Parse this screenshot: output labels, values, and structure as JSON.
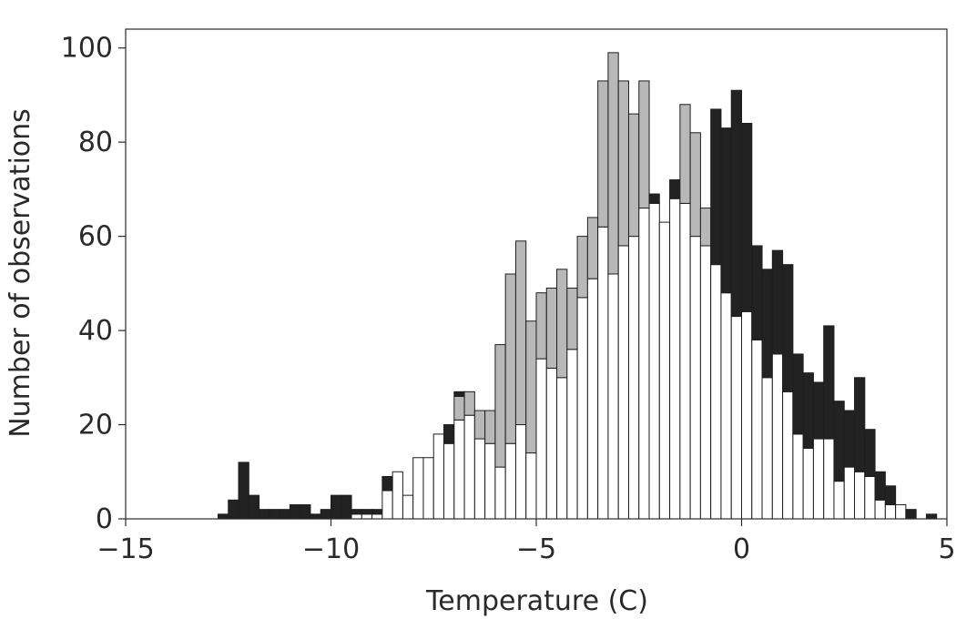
{
  "chart_data": {
    "type": "bar",
    "stacked": true,
    "title": "",
    "xlabel": "Temperature (C)",
    "ylabel": "Number of observations",
    "xlim": [
      -15,
      5
    ],
    "ylim": [
      0,
      104
    ],
    "xticks": [
      "−15",
      "−10",
      "−5",
      "0",
      "5"
    ],
    "yticks": [
      "0",
      "20",
      "40",
      "60",
      "80",
      "100"
    ],
    "grid": false,
    "legend": "none",
    "bin_width": 0.25,
    "x": [
      -12.625,
      -12.375,
      -12.125,
      -11.875,
      -11.625,
      -11.375,
      -11.125,
      -10.875,
      -10.625,
      -10.375,
      -10.125,
      -9.875,
      -9.625,
      -9.375,
      -9.125,
      -8.875,
      -8.625,
      -8.375,
      -8.125,
      -7.875,
      -7.625,
      -7.375,
      -7.125,
      -6.875,
      -6.625,
      -6.375,
      -6.125,
      -5.875,
      -5.625,
      -5.375,
      -5.125,
      -4.875,
      -4.625,
      -4.375,
      -4.125,
      -3.875,
      -3.625,
      -3.375,
      -3.125,
      -2.875,
      -2.625,
      -2.375,
      -2.125,
      -1.875,
      -1.625,
      -1.375,
      -1.125,
      -0.875,
      -0.625,
      -0.375,
      -0.125,
      0.125,
      0.375,
      0.625,
      0.875,
      1.125,
      1.375,
      1.625,
      1.875,
      2.125,
      2.375,
      2.625,
      2.875,
      3.125,
      3.375,
      3.625,
      3.875,
      4.125,
      4.375,
      4.625
    ],
    "series": [
      {
        "color": "#ffffff",
        "values": [
          0,
          0,
          0,
          0,
          0,
          0,
          0,
          0,
          0,
          0,
          0,
          0,
          0,
          1,
          1,
          1,
          6,
          10,
          5,
          13,
          13,
          18,
          16,
          21,
          22,
          17,
          16,
          11,
          16,
          20,
          14,
          34,
          32,
          30,
          36,
          47,
          51,
          62,
          52,
          58,
          60,
          66,
          67,
          63,
          68,
          67,
          60,
          58,
          54,
          48,
          43,
          44,
          38,
          30,
          35,
          27,
          18,
          15,
          17,
          17,
          8,
          11,
          10,
          9,
          4,
          3,
          3,
          0,
          0,
          0
        ]
      },
      {
        "color": "#b8b8b8",
        "values": [
          0,
          0,
          0,
          0,
          0,
          0,
          0,
          0,
          0,
          0,
          0,
          0,
          0,
          0,
          0,
          0,
          0,
          0,
          0,
          0,
          0,
          0,
          0,
          5,
          5,
          6,
          7,
          26,
          36,
          39,
          28,
          14,
          17,
          23,
          13,
          13,
          13,
          31,
          47,
          35,
          26,
          27,
          0,
          0,
          0,
          21,
          22,
          8,
          0,
          0,
          0,
          0,
          0,
          0,
          0,
          0,
          0,
          0,
          0,
          0,
          0,
          0,
          0,
          0,
          0,
          0,
          0,
          0,
          0,
          0
        ]
      },
      {
        "color": "#222222",
        "values": [
          1,
          4,
          12,
          5,
          2,
          2,
          2,
          3,
          3,
          1,
          2,
          5,
          5,
          1,
          1,
          1,
          3,
          0,
          0,
          0,
          0,
          0,
          4,
          1,
          0,
          0,
          0,
          0,
          0,
          0,
          0,
          0,
          0,
          0,
          0,
          0,
          0,
          0,
          0,
          0,
          0,
          0,
          2,
          0,
          4,
          0,
          0,
          0,
          33,
          35,
          48,
          40,
          20,
          23,
          22,
          27,
          17,
          16,
          12,
          24,
          17,
          12,
          20,
          10,
          6,
          4,
          0,
          2,
          0,
          1
        ]
      }
    ]
  }
}
